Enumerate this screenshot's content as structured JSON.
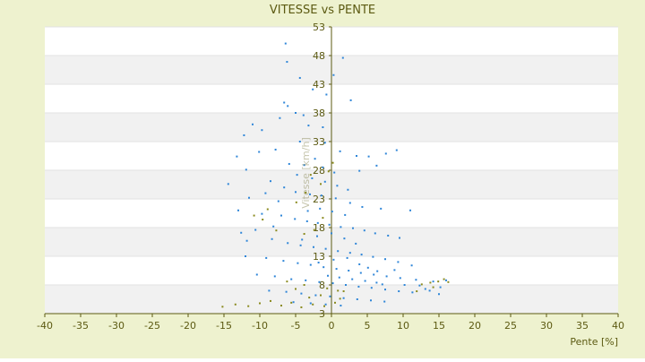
{
  "chart_data": {
    "type": "scatter",
    "title": "VITESSE vs PENTE",
    "xlabel": "Pente [%]",
    "ylabel": "Vitesse [km/h]",
    "xlim": [
      -40,
      40
    ],
    "ylim": [
      3,
      53
    ],
    "x_ticks": [
      -40,
      -35,
      -30,
      -25,
      -20,
      -15,
      -10,
      -5,
      0,
      5,
      10,
      15,
      20,
      25,
      30,
      35,
      40
    ],
    "y_ticks": [
      3,
      8,
      13,
      18,
      23,
      28,
      33,
      38,
      43,
      48,
      53
    ],
    "grid": "horizontal bands",
    "legend": "none",
    "colors": {
      "background": "#EEF2CF",
      "plot_band_light": "#FFFFFF",
      "plot_band_dark": "#F1F1F1",
      "axis_text": "#5C5A12",
      "axis_line": "#5C5A12",
      "series_primary": "#2F86D8",
      "series_secondary": "#8A8A1E"
    },
    "series": [
      {
        "color": "#2F86D8",
        "points": [
          [
            -6.4,
            50.1
          ],
          [
            -6.2,
            46.9
          ],
          [
            1.6,
            47.6
          ],
          [
            -4.4,
            44.1
          ],
          [
            0.3,
            44.6
          ],
          [
            -2.6,
            42.1
          ],
          [
            -0.7,
            41.2
          ],
          [
            -6.6,
            39.8
          ],
          [
            -6.1,
            39.2
          ],
          [
            -5.0,
            38.0
          ],
          [
            2.7,
            40.2
          ],
          [
            -3.9,
            37.6
          ],
          [
            -7.2,
            37.1
          ],
          [
            -11.0,
            36.0
          ],
          [
            -9.7,
            35.0
          ],
          [
            -12.2,
            34.1
          ],
          [
            -3.2,
            35.8
          ],
          [
            -1.2,
            35.5
          ],
          [
            -4.4,
            33.0
          ],
          [
            -0.9,
            32.8
          ],
          [
            1.2,
            31.3
          ],
          [
            3.5,
            30.5
          ],
          [
            -13.2,
            30.4
          ],
          [
            -7.8,
            31.6
          ],
          [
            -10.1,
            31.2
          ],
          [
            5.2,
            30.4
          ],
          [
            9.1,
            31.5
          ],
          [
            -2.3,
            30.0
          ],
          [
            -1.2,
            28.5
          ],
          [
            0.4,
            27.6
          ],
          [
            -11.9,
            28.1
          ],
          [
            -14.4,
            25.6
          ],
          [
            -8.5,
            26.1
          ],
          [
            -6.6,
            25.0
          ],
          [
            -5.0,
            24.2
          ],
          [
            -3.0,
            23.8
          ],
          [
            -1.4,
            23.6
          ],
          [
            0.6,
            23.1
          ],
          [
            2.6,
            22.3
          ],
          [
            4.3,
            21.6
          ],
          [
            6.9,
            21.3
          ],
          [
            -13.0,
            21.0
          ],
          [
            -9.7,
            20.4
          ],
          [
            -7.0,
            20.1
          ],
          [
            -5.1,
            19.5
          ],
          [
            -3.4,
            19.1
          ],
          [
            -1.9,
            18.8
          ],
          [
            -0.3,
            18.5
          ],
          [
            1.3,
            18.1
          ],
          [
            3.0,
            17.9
          ],
          [
            4.6,
            17.5
          ],
          [
            6.1,
            17.0
          ],
          [
            7.9,
            16.6
          ],
          [
            9.5,
            16.2
          ],
          [
            11.0,
            21.0
          ],
          [
            -11.8,
            15.7
          ],
          [
            -8.3,
            16.0
          ],
          [
            -6.1,
            15.3
          ],
          [
            -4.3,
            14.9
          ],
          [
            -2.5,
            14.6
          ],
          [
            -0.8,
            14.3
          ],
          [
            0.9,
            13.9
          ],
          [
            2.6,
            13.6
          ],
          [
            4.2,
            13.3
          ],
          [
            5.8,
            12.9
          ],
          [
            7.5,
            12.5
          ],
          [
            9.3,
            12.0
          ],
          [
            11.2,
            11.4
          ],
          [
            -12.0,
            13.0
          ],
          [
            -9.1,
            12.7
          ],
          [
            -6.7,
            12.2
          ],
          [
            -4.7,
            11.8
          ],
          [
            -2.9,
            11.5
          ],
          [
            -1.1,
            11.1
          ],
          [
            0.7,
            10.8
          ],
          [
            2.4,
            10.5
          ],
          [
            4.1,
            10.1
          ],
          [
            5.9,
            9.8
          ],
          [
            7.7,
            9.5
          ],
          [
            9.6,
            9.2
          ],
          [
            11.8,
            8.9
          ],
          [
            14.2,
            8.6
          ],
          [
            16.0,
            8.8
          ],
          [
            -10.4,
            9.8
          ],
          [
            -7.9,
            9.5
          ],
          [
            -5.6,
            9.0
          ],
          [
            -3.6,
            8.8
          ],
          [
            -1.7,
            8.5
          ],
          [
            0.2,
            8.3
          ],
          [
            2.0,
            8.0
          ],
          [
            3.8,
            7.7
          ],
          [
            5.6,
            7.5
          ],
          [
            7.5,
            7.2
          ],
          [
            9.4,
            6.9
          ],
          [
            11.3,
            6.7
          ],
          [
            13.1,
            7.3
          ],
          [
            15.2,
            7.6
          ],
          [
            -8.7,
            7.0
          ],
          [
            -6.3,
            6.8
          ],
          [
            -4.2,
            6.5
          ],
          [
            -2.2,
            6.2
          ],
          [
            -0.2,
            6.0
          ],
          [
            1.7,
            5.7
          ],
          [
            3.6,
            5.5
          ],
          [
            5.5,
            5.3
          ],
          [
            7.4,
            5.1
          ],
          [
            -5.3,
            5.0
          ],
          [
            -2.9,
            4.8
          ],
          [
            -0.8,
            4.6
          ],
          [
            1.3,
            4.4
          ],
          [
            -4.1,
            15.9
          ],
          [
            -2.0,
            16.5
          ],
          [
            0.0,
            17.0
          ],
          [
            1.8,
            16.1
          ],
          [
            3.4,
            15.2
          ],
          [
            -3.3,
            20.9
          ],
          [
            -1.6,
            21.3
          ],
          [
            0.1,
            20.8
          ],
          [
            1.9,
            20.2
          ],
          [
            -4.8,
            27.2
          ],
          [
            -2.7,
            26.6
          ],
          [
            -0.9,
            26.0
          ],
          [
            0.8,
            25.3
          ],
          [
            2.3,
            24.6
          ],
          [
            -5.9,
            29.1
          ],
          [
            -3.8,
            28.9
          ],
          [
            3.9,
            27.9
          ],
          [
            6.3,
            28.8
          ],
          [
            7.6,
            30.9
          ],
          [
            -1.8,
            11.9
          ],
          [
            0.3,
            12.4
          ],
          [
            2.2,
            12.7
          ],
          [
            3.9,
            11.6
          ],
          [
            5.1,
            11.0
          ],
          [
            6.4,
            10.4
          ],
          [
            7.1,
            8.1
          ],
          [
            8.8,
            10.6
          ],
          [
            10.2,
            8.0
          ],
          [
            12.3,
            7.9
          ],
          [
            13.7,
            7.0
          ],
          [
            15.0,
            6.4
          ],
          [
            -0.5,
            9.6
          ],
          [
            1.1,
            9.3
          ],
          [
            2.9,
            9.0
          ],
          [
            4.7,
            8.7
          ],
          [
            6.3,
            8.4
          ],
          [
            -7.4,
            22.6
          ],
          [
            -9.2,
            24.0
          ],
          [
            -11.5,
            23.2
          ],
          [
            -8.1,
            18.2
          ],
          [
            -10.6,
            17.6
          ],
          [
            -12.6,
            17.1
          ]
        ]
      },
      {
        "color": "#8A8A1E",
        "points": [
          [
            -15.2,
            4.2
          ],
          [
            -13.4,
            4.6
          ],
          [
            -11.6,
            4.3
          ],
          [
            -10.0,
            4.8
          ],
          [
            -8.5,
            5.2
          ],
          [
            -7.0,
            4.4
          ],
          [
            -5.6,
            4.9
          ],
          [
            -4.2,
            4.1
          ],
          [
            -2.6,
            4.6
          ],
          [
            -1.0,
            4.3
          ],
          [
            0.5,
            4.9
          ],
          [
            1.2,
            5.6
          ],
          [
            -1.5,
            6.2
          ],
          [
            -3.1,
            5.8
          ],
          [
            -0.6,
            7.4
          ],
          [
            0.9,
            7.0
          ],
          [
            -10.8,
            20.1
          ],
          [
            -9.6,
            19.4
          ],
          [
            -8.9,
            21.2
          ],
          [
            -7.7,
            17.5
          ],
          [
            -3.8,
            16.9
          ],
          [
            -2.4,
            17.6
          ],
          [
            -1.2,
            19.7
          ],
          [
            -1.5,
            25.6
          ],
          [
            -0.4,
            27.8
          ],
          [
            0.2,
            29.3
          ],
          [
            -4.9,
            22.4
          ],
          [
            -3.6,
            24.1
          ],
          [
            -2.9,
            27.2
          ],
          [
            12.6,
            8.1
          ],
          [
            13.8,
            8.4
          ],
          [
            14.9,
            8.6
          ],
          [
            15.7,
            9.0
          ],
          [
            16.3,
            8.5
          ],
          [
            14.2,
            7.6
          ],
          [
            11.9,
            6.9
          ],
          [
            -6.2,
            8.6
          ],
          [
            -5.0,
            7.3
          ],
          [
            -3.8,
            8.0
          ],
          [
            1.7,
            6.9
          ]
        ]
      }
    ]
  }
}
